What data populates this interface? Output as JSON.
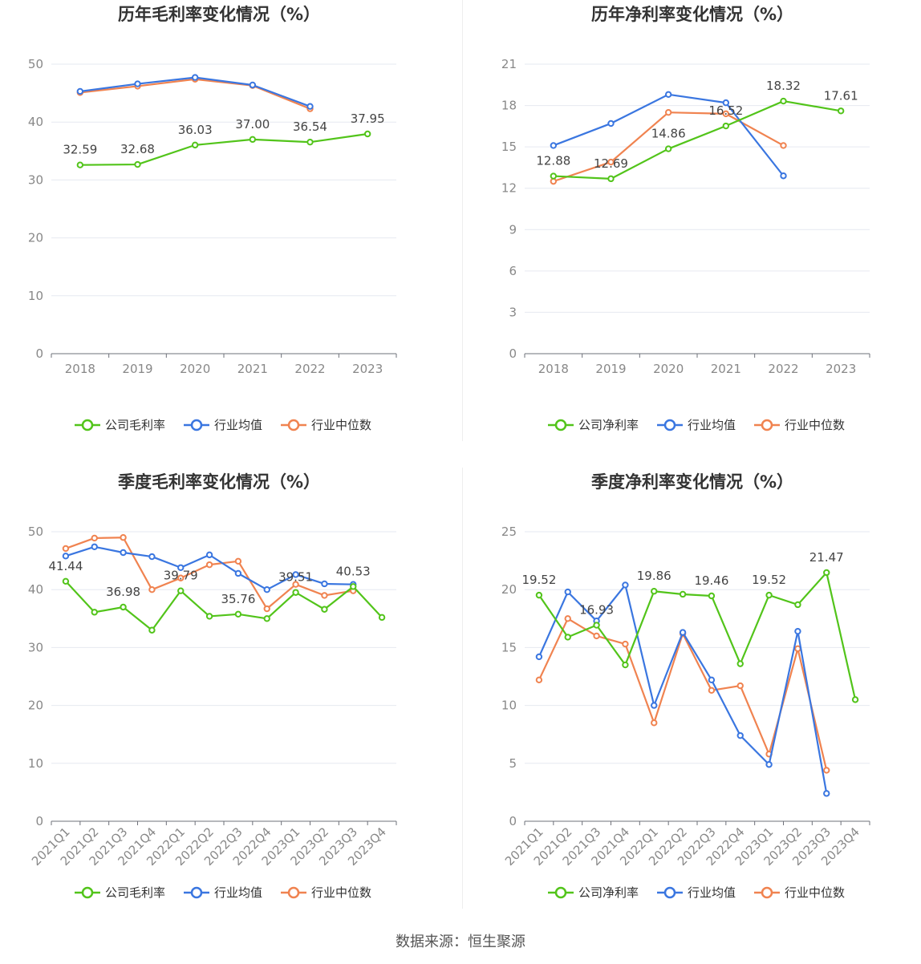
{
  "source": "数据来源：恒生聚源",
  "colors": {
    "company": "#52c41a",
    "avg": "#3a76e0",
    "median": "#f08350"
  },
  "chart_data": [
    {
      "type": "line",
      "title": "历年毛利率变化情况（%）",
      "categories": [
        "2018",
        "2019",
        "2020",
        "2021",
        "2022",
        "2023"
      ],
      "ylim": [
        0,
        50
      ],
      "yticks": [
        0,
        10,
        20,
        30,
        40,
        50
      ],
      "grid": true,
      "legend": "bottom",
      "series": [
        {
          "name": "公司毛利率",
          "values": [
            32.59,
            32.68,
            36.03,
            37.0,
            36.54,
            37.95
          ],
          "labels": [
            "32.59",
            "32.68",
            "36.03",
            "37.00",
            "36.54",
            "37.95"
          ]
        },
        {
          "name": "行业均值",
          "values": [
            45.3,
            46.6,
            47.7,
            46.4,
            42.7,
            null
          ]
        },
        {
          "name": "行业中位数",
          "values": [
            45.1,
            46.2,
            47.4,
            46.3,
            42.3,
            null
          ]
        }
      ]
    },
    {
      "type": "line",
      "title": "历年净利率变化情况（%）",
      "categories": [
        "2018",
        "2019",
        "2020",
        "2021",
        "2022",
        "2023"
      ],
      "ylim": [
        0,
        21
      ],
      "yticks": [
        0,
        3,
        6,
        9,
        12,
        15,
        18,
        21
      ],
      "grid": true,
      "legend": "bottom",
      "series": [
        {
          "name": "公司净利率",
          "values": [
            12.88,
            12.69,
            14.86,
            16.52,
            18.32,
            17.61
          ],
          "labels": [
            "12.88",
            "12.69",
            "14.86",
            "16.52",
            "18.32",
            "17.61"
          ]
        },
        {
          "name": "行业均值",
          "values": [
            15.1,
            16.7,
            18.8,
            18.2,
            12.9,
            null
          ]
        },
        {
          "name": "行业中位数",
          "values": [
            12.5,
            13.9,
            17.5,
            17.4,
            15.1,
            null
          ]
        }
      ]
    },
    {
      "type": "line",
      "title": "季度毛利率变化情况（%）",
      "categories": [
        "2021Q1",
        "2021Q2",
        "2021Q3",
        "2021Q4",
        "2022Q1",
        "2022Q2",
        "2022Q3",
        "2022Q4",
        "2023Q1",
        "2023Q2",
        "2023Q3",
        "2023Q4"
      ],
      "ylim": [
        0,
        50
      ],
      "yticks": [
        0,
        10,
        20,
        30,
        40,
        50
      ],
      "grid": true,
      "legend": "bottom",
      "series": [
        {
          "name": "公司毛利率",
          "values": [
            41.44,
            36.1,
            36.98,
            33.0,
            39.79,
            35.4,
            35.76,
            35.0,
            39.51,
            36.6,
            40.53,
            35.2
          ],
          "labels": [
            "41.44",
            "",
            "36.98",
            "",
            "39.79",
            "",
            "35.76",
            "",
            "39.51",
            "",
            "40.53",
            ""
          ]
        },
        {
          "name": "行业均值",
          "values": [
            45.8,
            47.4,
            46.4,
            45.7,
            43.8,
            46.0,
            42.8,
            40.0,
            42.6,
            41.0,
            40.9,
            null
          ]
        },
        {
          "name": "行业中位数",
          "values": [
            47.1,
            48.9,
            49.0,
            40.0,
            42.0,
            44.3,
            44.9,
            36.7,
            40.9,
            39.0,
            39.8,
            null
          ]
        }
      ]
    },
    {
      "type": "line",
      "title": "季度净利率变化情况（%）",
      "categories": [
        "2021Q1",
        "2021Q2",
        "2021Q3",
        "2021Q4",
        "2022Q1",
        "2022Q2",
        "2022Q3",
        "2022Q4",
        "2023Q1",
        "2023Q2",
        "2023Q3",
        "2023Q4"
      ],
      "ylim": [
        0,
        25
      ],
      "yticks": [
        0,
        5,
        10,
        15,
        20,
        25
      ],
      "grid": true,
      "legend": "bottom",
      "series": [
        {
          "name": "公司净利率",
          "values": [
            19.52,
            15.9,
            16.93,
            13.5,
            19.86,
            19.6,
            19.46,
            13.6,
            19.52,
            18.7,
            21.47,
            10.5
          ],
          "labels": [
            "19.52",
            "",
            "16.93",
            "",
            "19.86",
            "",
            "19.46",
            "",
            "19.52",
            "",
            "21.47",
            ""
          ]
        },
        {
          "name": "行业均值",
          "values": [
            14.2,
            19.8,
            17.3,
            20.4,
            10.0,
            16.3,
            12.2,
            7.4,
            4.9,
            16.4,
            2.4,
            null
          ]
        },
        {
          "name": "行业中位数",
          "values": [
            12.2,
            17.5,
            16.0,
            15.3,
            8.5,
            16.2,
            11.3,
            11.7,
            5.8,
            14.9,
            4.4,
            null
          ]
        }
      ]
    }
  ]
}
